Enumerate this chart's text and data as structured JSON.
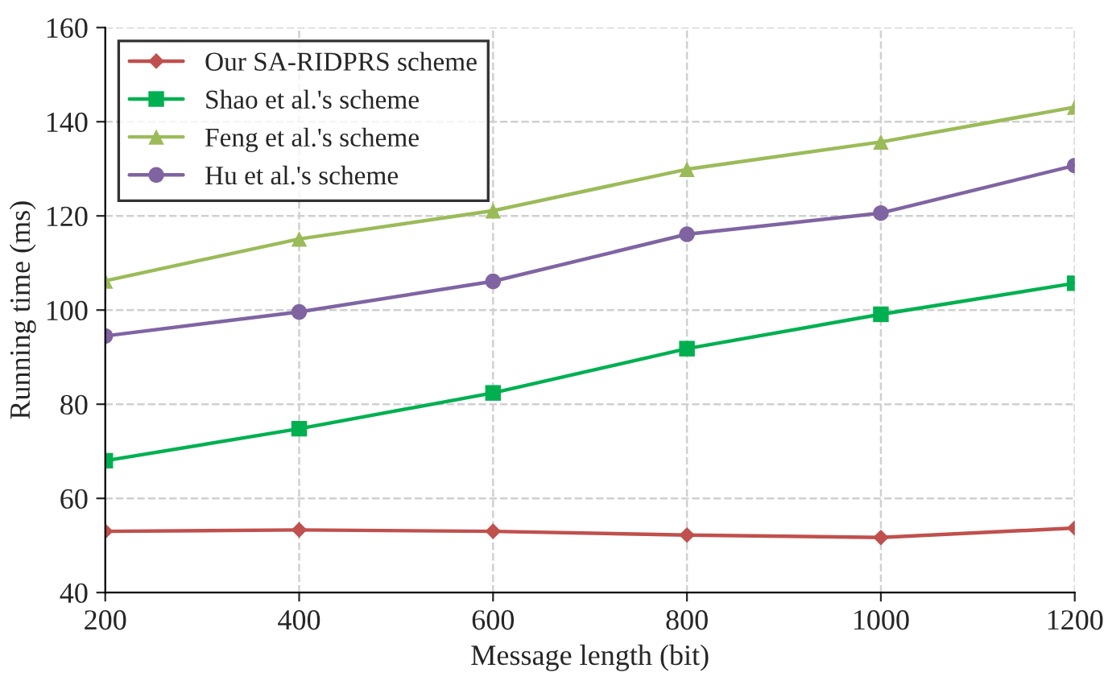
{
  "chart_data": {
    "type": "line",
    "xlabel": "Message length (bit)",
    "ylabel": "Running time (ms)",
    "x": [
      200,
      400,
      600,
      800,
      1000,
      1200
    ],
    "series": [
      {
        "name": "Our SA-RIDPRS scheme",
        "color": "#c0504d",
        "marker": "diamond",
        "values": [
          53,
          53.3,
          53,
          52.2,
          51.7,
          53.7
        ]
      },
      {
        "name": "Shao et al.'s scheme",
        "color": "#00b050",
        "marker": "square",
        "values": [
          68,
          74.8,
          82.4,
          91.8,
          99.1,
          105.7
        ]
      },
      {
        "name": "Feng et al.'s scheme",
        "color": "#9bbb59",
        "marker": "triangle",
        "values": [
          106.2,
          115.1,
          121.1,
          129.9,
          135.7,
          143.1
        ]
      },
      {
        "name": "Hu et al.'s scheme",
        "color": "#8064a2",
        "marker": "circle",
        "values": [
          94.5,
          99.6,
          106.1,
          116.1,
          120.6,
          130.7
        ]
      }
    ],
    "xlim": [
      200,
      1200
    ],
    "xticks": [
      200,
      400,
      600,
      800,
      1000,
      1200
    ],
    "ylim": [
      40,
      160
    ],
    "yticks": [
      40,
      60,
      80,
      100,
      120,
      140,
      160
    ],
    "grid": true,
    "legend": "top left"
  }
}
